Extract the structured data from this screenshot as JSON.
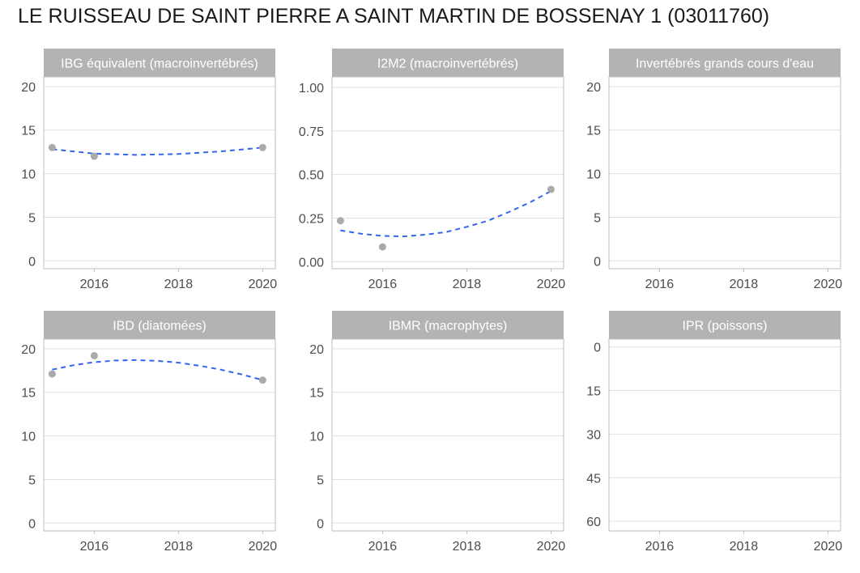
{
  "title": "LE RUISSEAU DE SAINT PIERRE A SAINT MARTIN DE BOSSENAY 1 (03011760)",
  "colors": {
    "points": "#aaaaaa",
    "trend": "#3366ee",
    "strip": "#b3b3b3",
    "grid": "#e0e0e0",
    "frame": "#bdbdbd"
  },
  "chart_data": [
    {
      "type": "scatter",
      "title": "IBG équivalent (macroinvertébrés)",
      "xlim": [
        2014.8,
        2020.3
      ],
      "x_ticks": [
        2016,
        2018,
        2020
      ],
      "ylim": [
        -0.9,
        21.1
      ],
      "y_ticks": [
        0,
        5,
        10,
        15,
        20
      ],
      "y_tick_labels": [
        "0",
        "5",
        "10",
        "15",
        "20"
      ],
      "points": [
        {
          "x": 2015,
          "y": 13
        },
        {
          "x": 2016,
          "y": 12
        },
        {
          "x": 2020,
          "y": 13
        }
      ],
      "trend": [
        {
          "x": 2015,
          "y": 12.8
        },
        {
          "x": 2016,
          "y": 12.3
        },
        {
          "x": 2017,
          "y": 12.15
        },
        {
          "x": 2018,
          "y": 12.25
        },
        {
          "x": 2019,
          "y": 12.55
        },
        {
          "x": 2020,
          "y": 13
        }
      ],
      "grid": true
    },
    {
      "type": "scatter",
      "title": "I2M2 (macroinvertébrés)",
      "xlim": [
        2014.8,
        2020.3
      ],
      "x_ticks": [
        2016,
        2018,
        2020
      ],
      "ylim": [
        -0.04,
        1.06
      ],
      "y_ticks": [
        0,
        0.25,
        0.5,
        0.75,
        1.0
      ],
      "y_tick_labels": [
        "0.00",
        "0.25",
        "0.50",
        "0.75",
        "1.00"
      ],
      "points": [
        {
          "x": 2015,
          "y": 0.235
        },
        {
          "x": 2016,
          "y": 0.085
        },
        {
          "x": 2020,
          "y": 0.415
        }
      ],
      "trend": [
        {
          "x": 2015,
          "y": 0.18
        },
        {
          "x": 2015.5,
          "y": 0.16
        },
        {
          "x": 2016,
          "y": 0.148
        },
        {
          "x": 2016.5,
          "y": 0.145
        },
        {
          "x": 2017,
          "y": 0.155
        },
        {
          "x": 2017.5,
          "y": 0.17
        },
        {
          "x": 2018,
          "y": 0.2
        },
        {
          "x": 2018.5,
          "y": 0.235
        },
        {
          "x": 2019,
          "y": 0.285
        },
        {
          "x": 2019.5,
          "y": 0.34
        },
        {
          "x": 2020,
          "y": 0.405
        }
      ],
      "grid": true
    },
    {
      "type": "scatter",
      "title": "Invertébrés grands cours d'eau",
      "xlim": [
        2014.8,
        2020.3
      ],
      "x_ticks": [
        2016,
        2018,
        2020
      ],
      "ylim": [
        -0.9,
        21.1
      ],
      "y_ticks": [
        0,
        5,
        10,
        15,
        20
      ],
      "y_tick_labels": [
        "0",
        "5",
        "10",
        "15",
        "20"
      ],
      "points": [],
      "trend": [],
      "grid": true
    },
    {
      "type": "scatter",
      "title": "IBD (diatomées)",
      "xlim": [
        2014.8,
        2020.3
      ],
      "x_ticks": [
        2016,
        2018,
        2020
      ],
      "ylim": [
        -0.9,
        21.1
      ],
      "y_ticks": [
        0,
        5,
        10,
        15,
        20
      ],
      "y_tick_labels": [
        "0",
        "5",
        "10",
        "15",
        "20"
      ],
      "points": [
        {
          "x": 2015,
          "y": 17.1
        },
        {
          "x": 2016,
          "y": 19.2
        },
        {
          "x": 2020,
          "y": 16.4
        }
      ],
      "trend": [
        {
          "x": 2015,
          "y": 17.6
        },
        {
          "x": 2015.5,
          "y": 18.1
        },
        {
          "x": 2016,
          "y": 18.45
        },
        {
          "x": 2016.5,
          "y": 18.65
        },
        {
          "x": 2017,
          "y": 18.7
        },
        {
          "x": 2017.5,
          "y": 18.6
        },
        {
          "x": 2018,
          "y": 18.4
        },
        {
          "x": 2018.5,
          "y": 18.05
        },
        {
          "x": 2019,
          "y": 17.6
        },
        {
          "x": 2019.5,
          "y": 17.05
        },
        {
          "x": 2020,
          "y": 16.4
        }
      ],
      "grid": true
    },
    {
      "type": "scatter",
      "title": "IBMR (macrophytes)",
      "xlim": [
        2014.8,
        2020.3
      ],
      "x_ticks": [
        2016,
        2018,
        2020
      ],
      "ylim": [
        -0.9,
        21.1
      ],
      "y_ticks": [
        0,
        5,
        10,
        15,
        20
      ],
      "y_tick_labels": [
        "0",
        "5",
        "10",
        "15",
        "20"
      ],
      "points": [],
      "trend": [],
      "grid": true
    },
    {
      "type": "scatter",
      "title": "IPR (poissons)",
      "xlim": [
        2014.8,
        2020.3
      ],
      "x_ticks": [
        2016,
        2018,
        2020
      ],
      "y_reversed": true,
      "ylim": [
        -2.7,
        63.3
      ],
      "y_ticks": [
        0,
        15,
        30,
        45,
        60
      ],
      "y_tick_labels": [
        "0",
        "15",
        "30",
        "45",
        "60"
      ],
      "points": [],
      "trend": [],
      "grid": true
    }
  ]
}
